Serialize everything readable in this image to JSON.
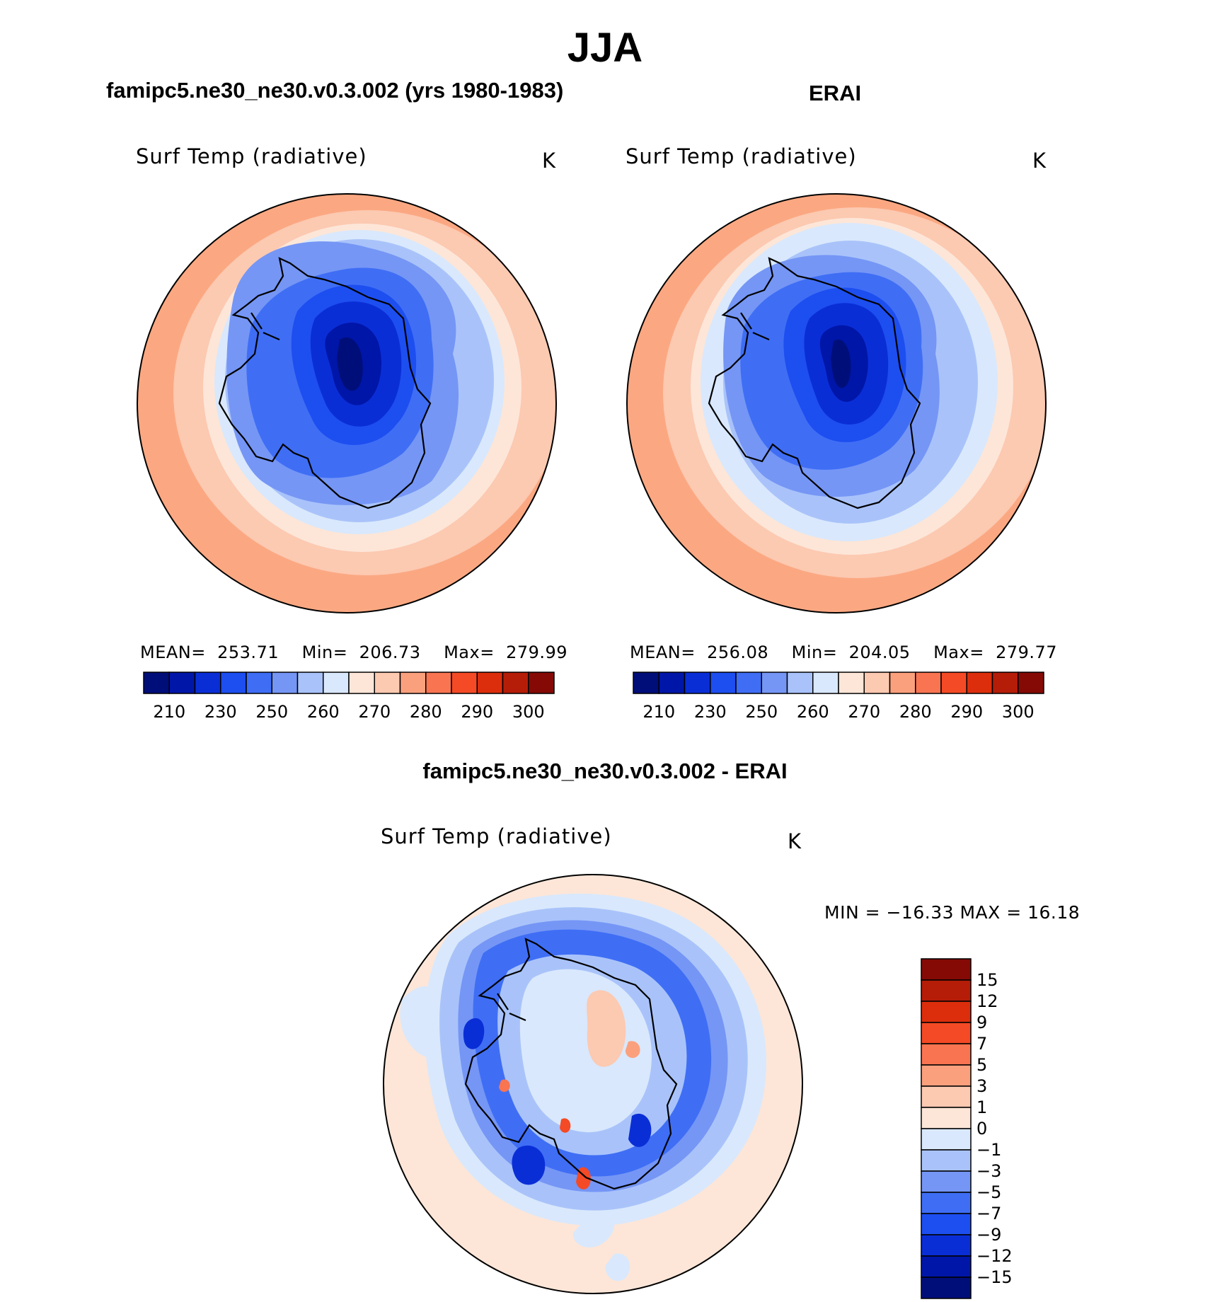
{
  "main_title": "JJA",
  "panels": [
    {
      "title": "famipc5.ne30_ne30.v0.3.002 (yrs 1980-1983)",
      "variable": "Surf Temp (radiative)",
      "units": "K",
      "stats": {
        "mean_label": "MEAN=",
        "mean": "253.71",
        "min_label": "Min=",
        "min": "206.73",
        "max_label": "Max=",
        "max": "279.99"
      }
    },
    {
      "title": "ERAI",
      "variable": "Surf Temp (radiative)",
      "units": "K",
      "stats": {
        "mean_label": "MEAN=",
        "mean": "256.08",
        "min_label": "Min=",
        "min": "204.05",
        "max_label": "Max=",
        "max": "279.77"
      }
    }
  ],
  "horizontal_colorbar": {
    "colors": [
      "#000e7a",
      "#0016a8",
      "#0a2ed6",
      "#1d4ef0",
      "#3f6ef5",
      "#7596f5",
      "#a9c3fa",
      "#d9e8fc",
      "#fde6d8",
      "#fcc9b1",
      "#fba07d",
      "#f97451",
      "#f44a25",
      "#dc2e0c",
      "#b51d08",
      "#850a06"
    ],
    "ticks": [
      "210",
      "230",
      "250",
      "260",
      "270",
      "280",
      "290",
      "300"
    ]
  },
  "diff_panel": {
    "title": "famipc5.ne30_ne30.v0.3.002 - ERAI",
    "variable": "Surf Temp (radiative)",
    "units": "K",
    "min_max_text": "MIN = −16.33 MAX =   16.18"
  },
  "vertical_colorbar": {
    "colors": [
      "#850a06",
      "#b51d08",
      "#dc2e0c",
      "#f44a25",
      "#f97451",
      "#fba07d",
      "#fcc9b1",
      "#fde6d8",
      "#d9e8fc",
      "#a9c3fa",
      "#7596f5",
      "#3f6ef5",
      "#1d4ef0",
      "#0a2ed6",
      "#0016a8",
      "#000e7a"
    ],
    "ticks": [
      "15",
      "12",
      "9",
      "7",
      "5",
      "3",
      "1",
      "0",
      "−1",
      "−3",
      "−5",
      "−7",
      "−9",
      "−12",
      "−15"
    ]
  },
  "colors": {
    "ring_outer": "#fba882",
    "ring_2": "#fcc9b1",
    "ring_3": "#fde6d8",
    "ring_4": "#d9e8fc",
    "ring_5": "#a9c3fa",
    "ring_6": "#7596f5",
    "ring_7": "#3f6ef5",
    "ring_8": "#1d4ef0",
    "ring_9": "#0a2ed6",
    "ring_10": "#0016a8",
    "ring_core": "#000e7a",
    "diff_bg": "#fde6d8",
    "diff_light": "#d9e8fc"
  }
}
